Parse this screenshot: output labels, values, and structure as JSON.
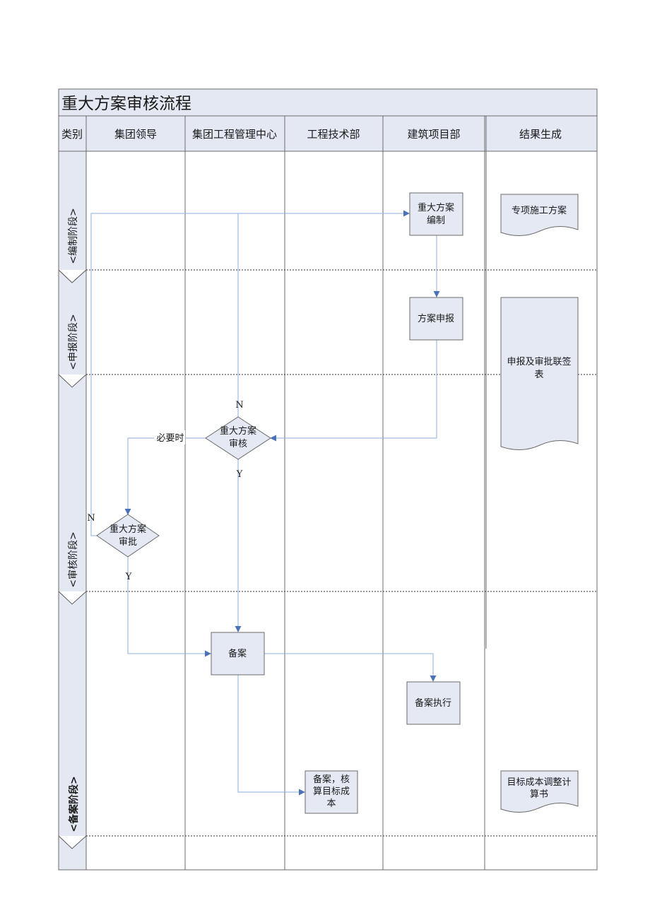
{
  "title": "重大方案审核流程",
  "header": {
    "category": "类别",
    "lanes": [
      "集团领导",
      "集团工程管理中心",
      "工程技术部",
      "建筑项目部",
      "结果生成"
    ]
  },
  "phases": [
    "<编制阶段>",
    "<申报阶段>",
    "<审核阶段>",
    "<备案阶段>"
  ],
  "nodes": {
    "compile": [
      "重大方案",
      "编制"
    ],
    "declare": [
      "方案申报"
    ],
    "review": [
      "重大方案",
      "审核"
    ],
    "approve": [
      "重大方案",
      "审批"
    ],
    "filing": [
      "备案"
    ],
    "execute": [
      "备案执行"
    ],
    "cost": [
      "备案，核",
      "算目标成",
      "本"
    ]
  },
  "documents": {
    "special_plan": [
      "专项施工方案"
    ],
    "approval_form": [
      "申报及审批联签",
      "表"
    ],
    "cost_adjust": [
      "目标成本调整计",
      "算书"
    ]
  },
  "edge_labels": {
    "review_no": "N",
    "review_yes": "Y",
    "review_when_needed": "必要时",
    "approve_no": "N",
    "approve_yes": "Y"
  },
  "colors": {
    "band": "#e3e8f3",
    "box_fill": "#e4e9f4",
    "border": "#6b6b6b",
    "connector": "#8eaedb",
    "arrow": "#4a72b8"
  }
}
